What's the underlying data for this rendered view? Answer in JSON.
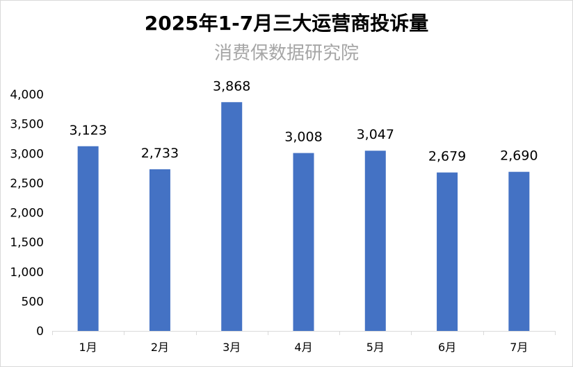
{
  "chart_data": {
    "type": "bar",
    "title": "2025年1-7月三大运营商投诉量",
    "subtitle": "消费保数据研究院",
    "categories": [
      "1月",
      "2月",
      "3月",
      "4月",
      "5月",
      "6月",
      "7月"
    ],
    "values": [
      3123,
      2733,
      3868,
      3008,
      3047,
      2679,
      2690
    ],
    "data_labels": [
      "3,123",
      "2,733",
      "3,868",
      "3,008",
      "3,047",
      "2,679",
      "2,690"
    ],
    "y_ticks": [
      0,
      500,
      1000,
      1500,
      2000,
      2500,
      3000,
      3500,
      4000
    ],
    "y_tick_labels": [
      "0",
      "500",
      "1,000",
      "1,500",
      "2,000",
      "2,500",
      "3,000",
      "3,500",
      "4,000"
    ],
    "ylim": [
      0,
      4000
    ],
    "grid": false,
    "legend": "none",
    "bar_color": "#4472C4"
  }
}
